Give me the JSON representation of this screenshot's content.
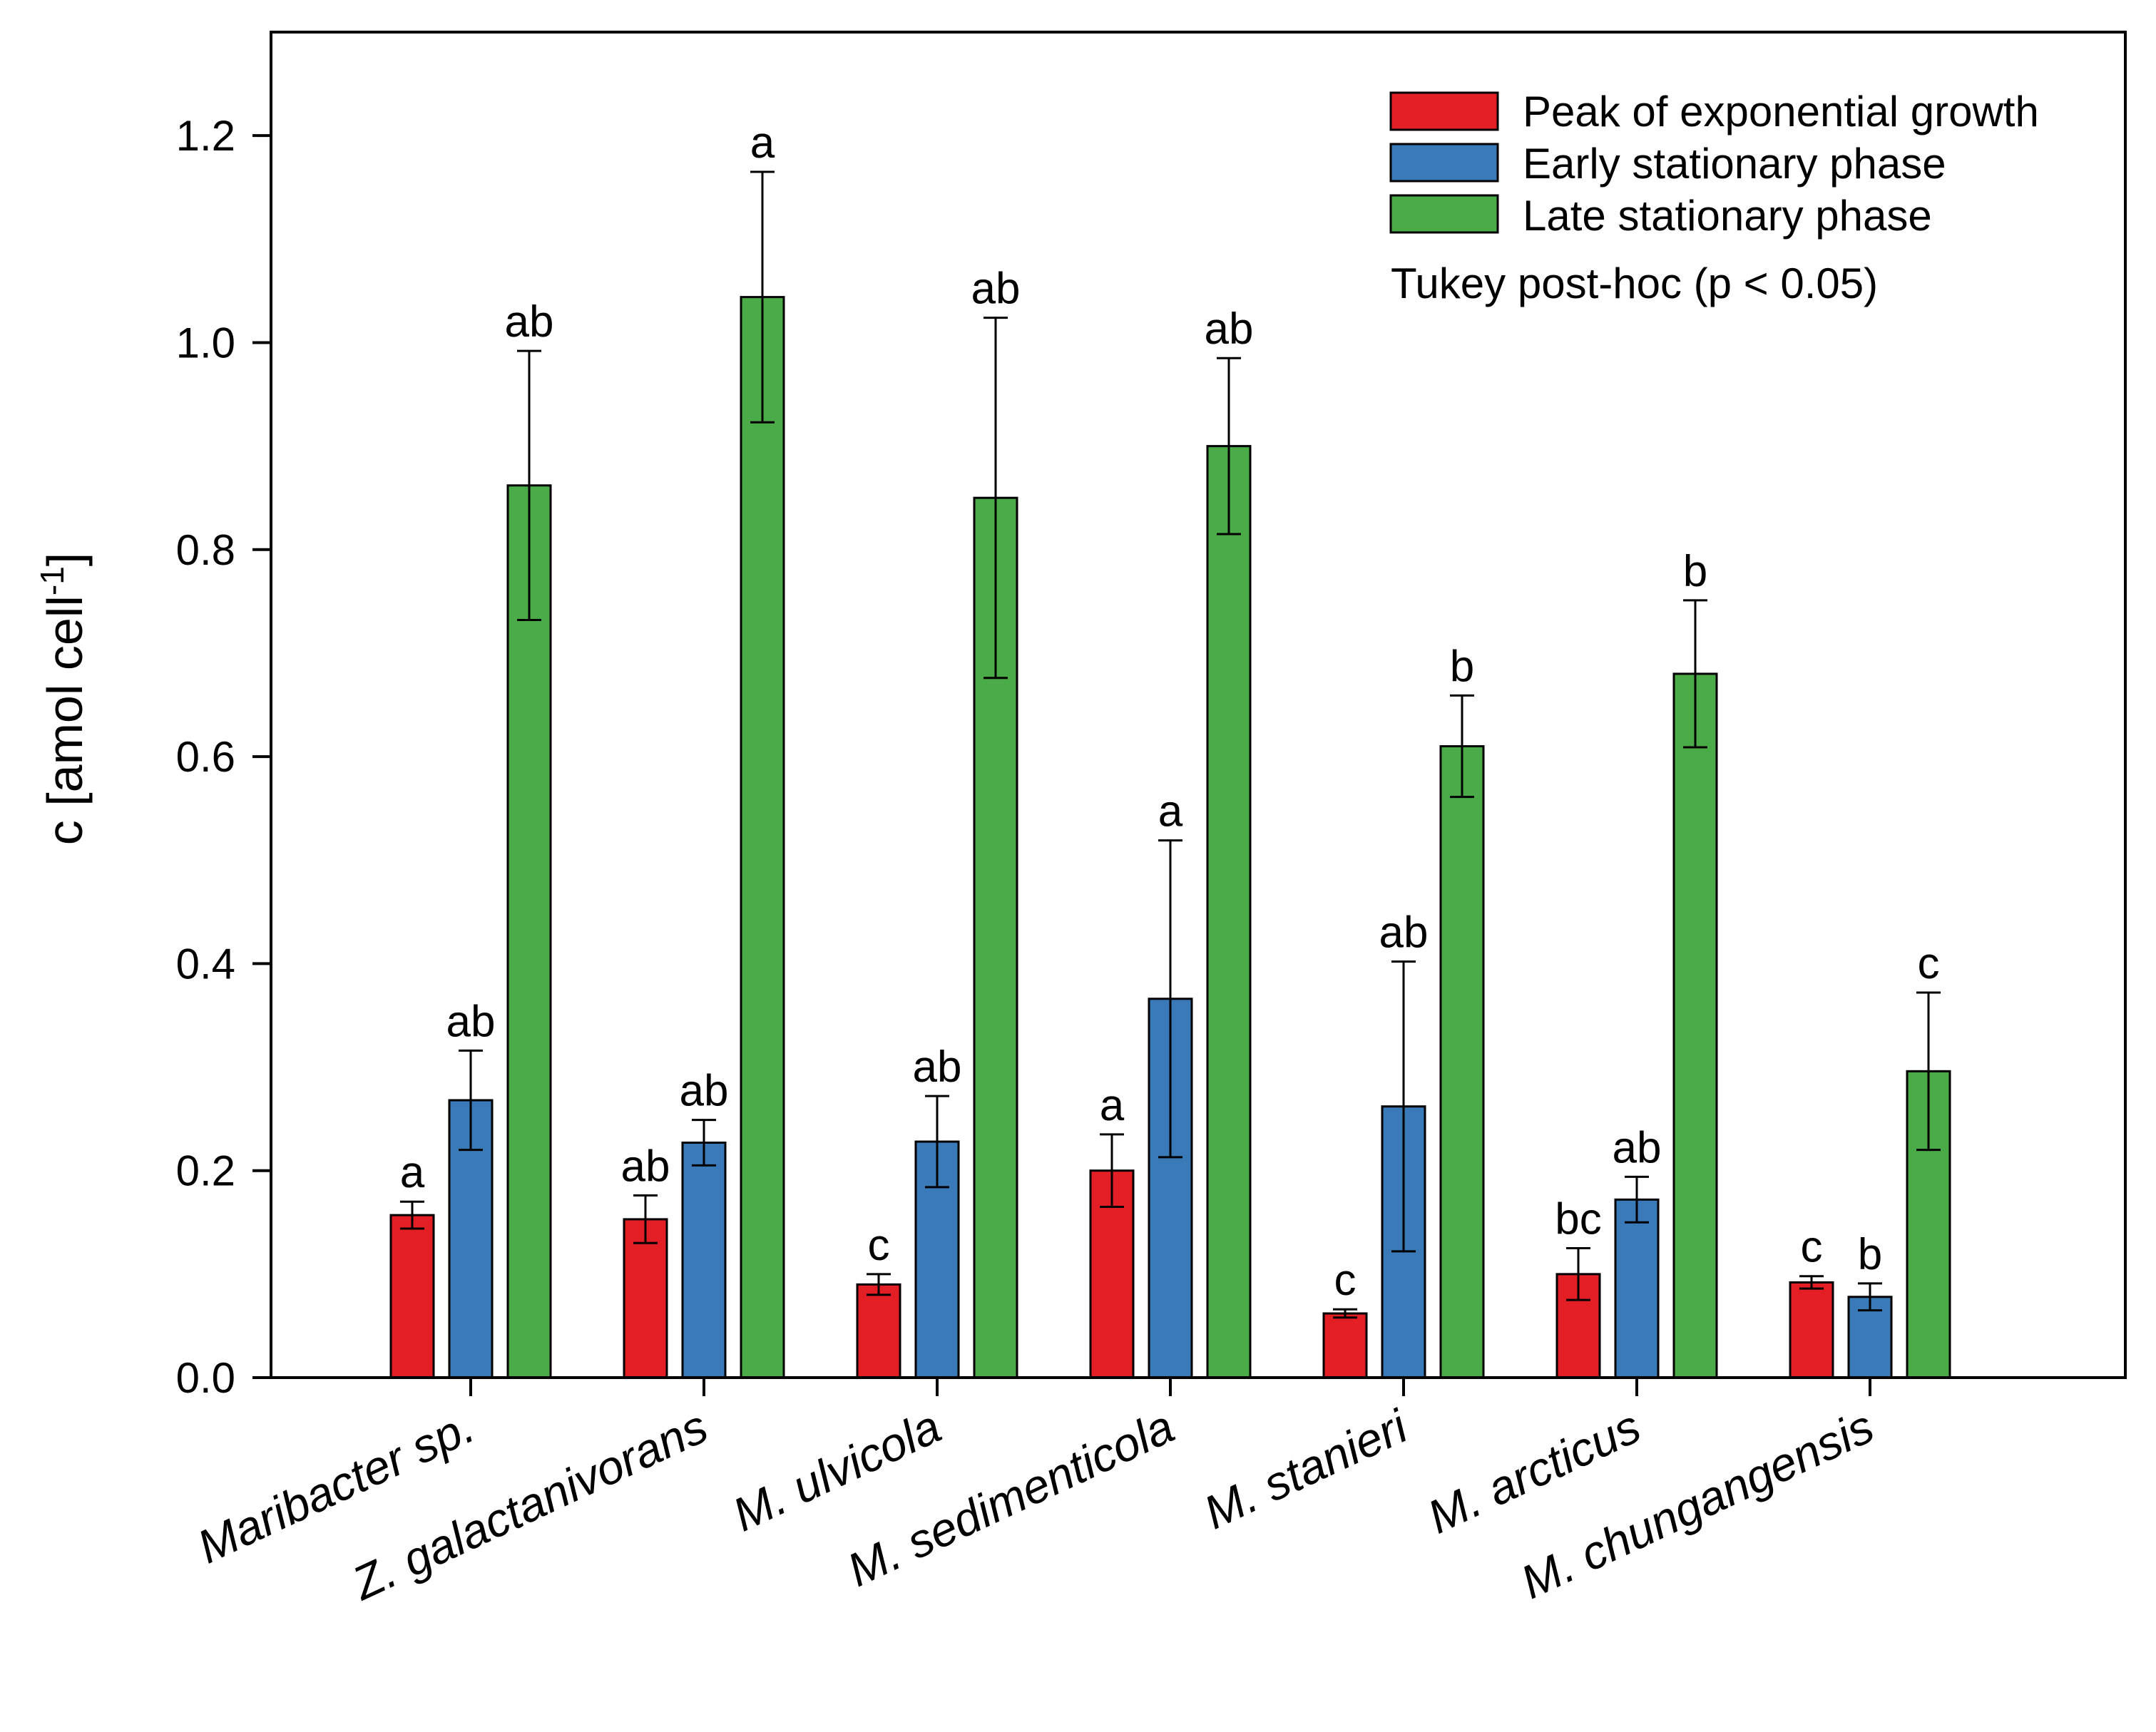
{
  "chart_data": {
    "type": "bar",
    "ylabel": "c [amol cell",
    "ylabel_sup": "-1",
    "ylabel_end": "]",
    "ylim": [
      0,
      1.3
    ],
    "yticks": [
      "0.0",
      "0.2",
      "0.4",
      "0.6",
      "0.8",
      "1.0",
      "1.2"
    ],
    "ytick_values": [
      0,
      0.2,
      0.4,
      0.6,
      0.8,
      1.0,
      1.2
    ],
    "categories": [
      "Maribacter sp.",
      "Z. galactanivorans",
      "M. ulvicola",
      "M. sedimenticola",
      "M. stanieri",
      "M. arcticus",
      "M. chungangensis"
    ],
    "series": [
      {
        "name": "Peak of exponential growth",
        "color": "#e31e24",
        "values": [
          0.157,
          0.153,
          0.09,
          0.2,
          0.062,
          0.1,
          0.092
        ],
        "errors": [
          0.013,
          0.023,
          0.01,
          0.035,
          0.004,
          0.025,
          0.006
        ],
        "letters": [
          "a",
          "ab",
          "c",
          "a",
          "c",
          "bc",
          "c"
        ]
      },
      {
        "name": "Early stationary phase",
        "color": "#3a7ab9",
        "values": [
          0.268,
          0.227,
          0.228,
          0.366,
          0.262,
          0.172,
          0.078
        ],
        "errors": [
          0.048,
          0.022,
          0.044,
          0.153,
          0.14,
          0.022,
          0.013
        ],
        "letters": [
          "ab",
          "ab",
          "ab",
          "a",
          "ab",
          "ab",
          "b"
        ]
      },
      {
        "name": "Late stationary phase",
        "color": "#4aab48",
        "values": [
          0.862,
          1.044,
          0.85,
          0.9,
          0.61,
          0.68,
          0.296
        ],
        "errors": [
          0.13,
          0.121,
          0.174,
          0.085,
          0.049,
          0.071,
          0.076
        ],
        "letters": [
          "ab",
          "a",
          "ab",
          "ab",
          "b",
          "b",
          "c"
        ]
      }
    ],
    "legend_position": "top-right",
    "annotation": "Tukey post-hoc (p < 0.05)",
    "grid": false
  }
}
